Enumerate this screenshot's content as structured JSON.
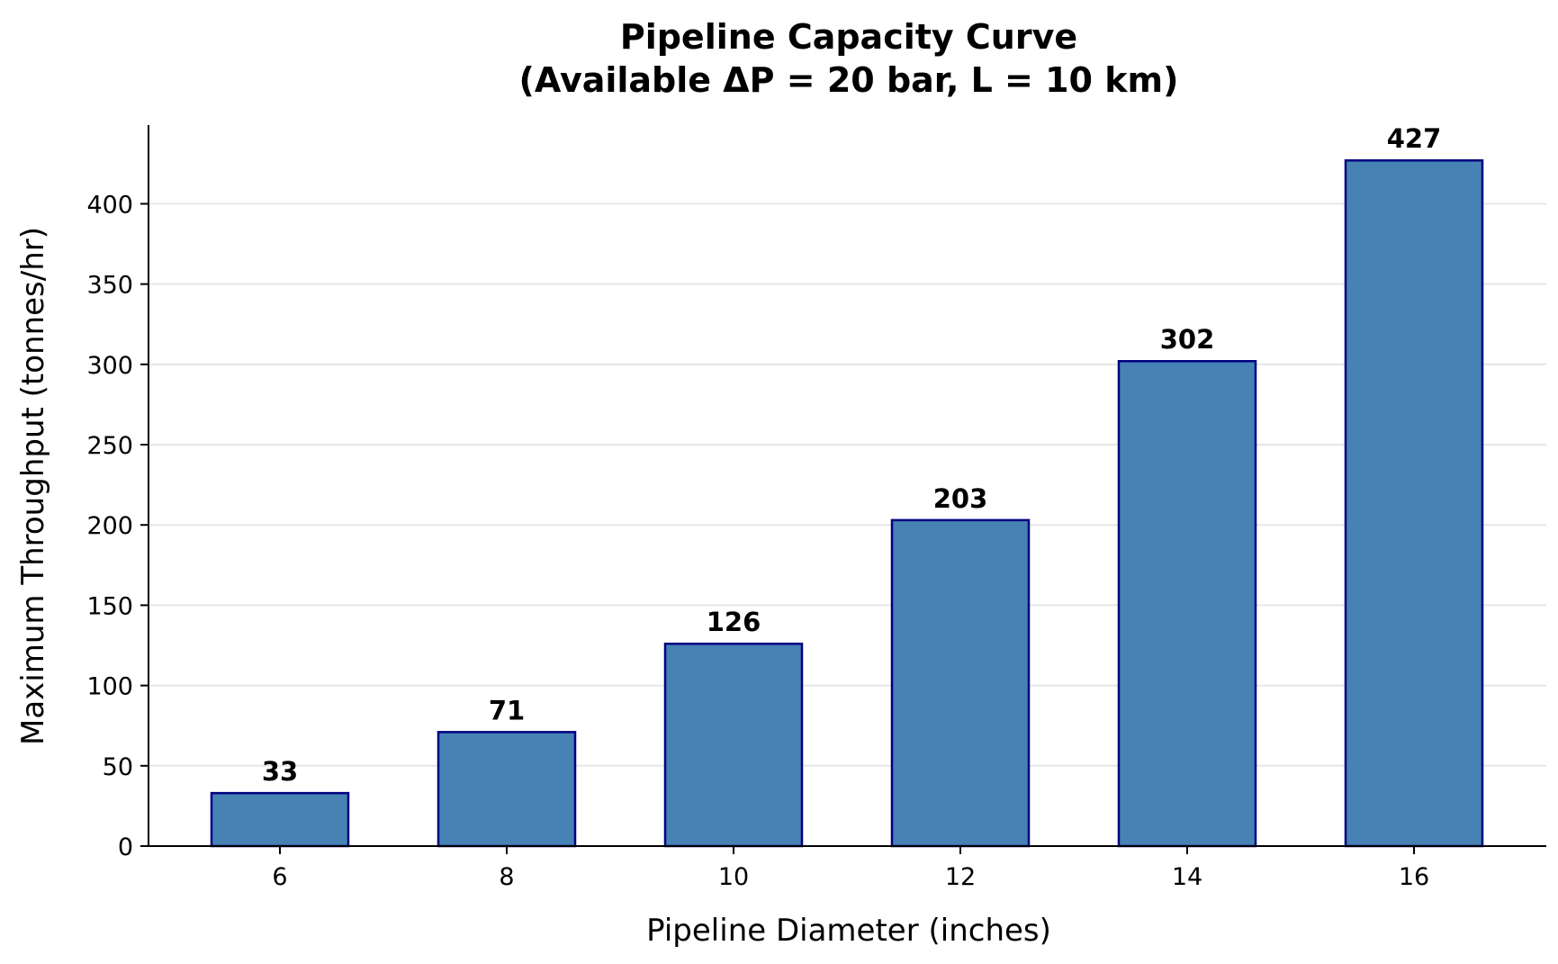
{
  "chart_data": {
    "type": "bar",
    "title": "Pipeline Capacity Curve",
    "subtitle": "(Available ΔP = 20 bar, L = 10 km)",
    "xlabel": "Pipeline Diameter (inches)",
    "ylabel": "Maximum Throughput (tonnes/hr)",
    "categories": [
      "6",
      "8",
      "10",
      "12",
      "14",
      "16"
    ],
    "values": [
      33,
      71,
      126,
      203,
      302,
      427
    ],
    "data_labels": [
      "33",
      "71",
      "126",
      "203",
      "302",
      "427"
    ],
    "ylim": [
      0,
      449
    ],
    "yticks": [
      0,
      50,
      100,
      150,
      200,
      250,
      300,
      350,
      400
    ],
    "grid": "horizontal",
    "legend": "none",
    "colors": {
      "bar_fill": "#4682b4",
      "bar_edge": "#000080",
      "grid": "#e6e6e6",
      "axis": "#000000"
    }
  }
}
